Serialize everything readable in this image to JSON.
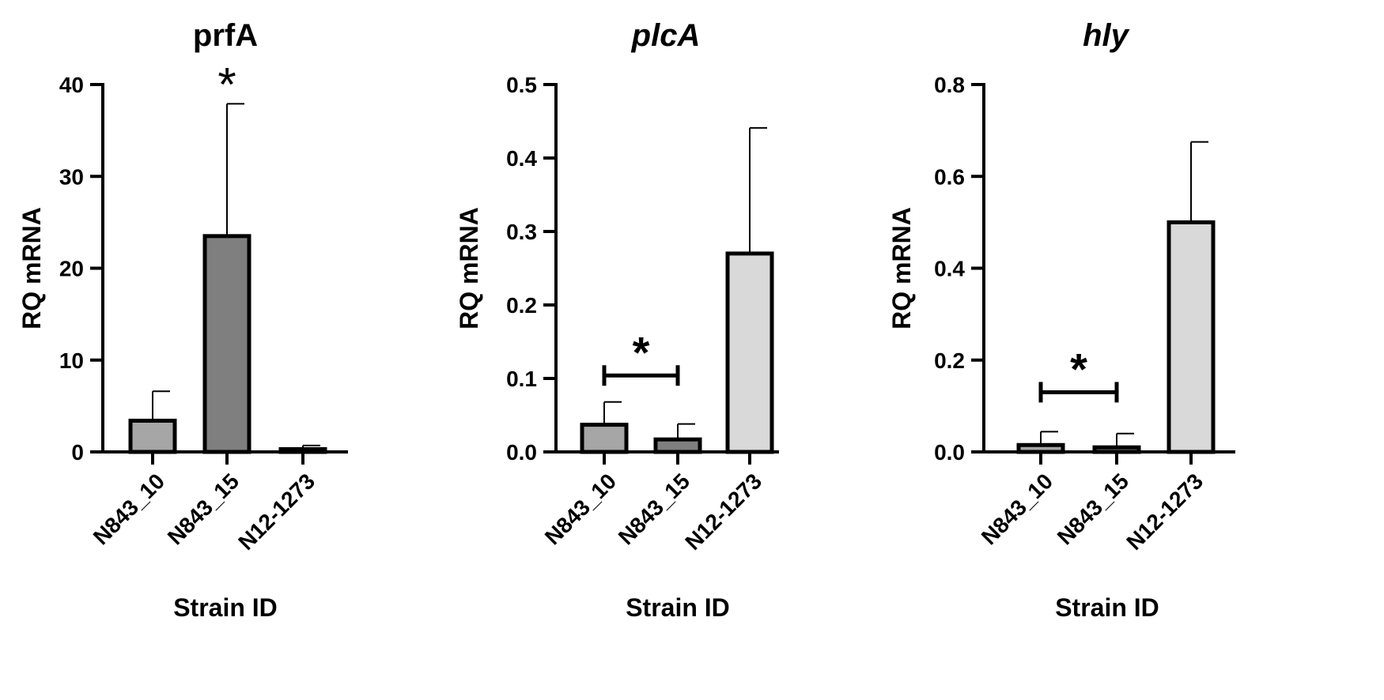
{
  "chart_data": [
    {
      "type": "bar",
      "title": "prfA",
      "title_italic": false,
      "xlabel": "Strain ID",
      "ylabel": "RQ mRNA",
      "ylim": [
        0,
        40
      ],
      "yticks": [
        0,
        10,
        20,
        30,
        40
      ],
      "ytick_labels": [
        "0",
        "10",
        "20",
        "30",
        "40"
      ],
      "categories": [
        "N843_10",
        "N843_15",
        "N12-1273"
      ],
      "values": [
        3.4,
        23.5,
        0.3
      ],
      "errors": [
        3.2,
        14.4,
        0.4
      ],
      "colors": [
        "#a6a6a6",
        "#7f7f7f",
        "#d9d9d9"
      ],
      "annotations": [
        {
          "text": "*",
          "over": [
            1
          ],
          "bracket": false
        }
      ]
    },
    {
      "type": "bar",
      "title": "plcA",
      "title_italic": true,
      "xlabel": "Strain ID",
      "ylabel": "RQ mRNA",
      "ylim": [
        0,
        0.5
      ],
      "yticks": [
        0,
        0.1,
        0.2,
        0.3,
        0.4,
        0.5
      ],
      "ytick_labels": [
        "0.0",
        "0.1",
        "0.2",
        "0.3",
        "0.4",
        "0.5"
      ],
      "categories": [
        "N843_10",
        "N843_15",
        "N12-1273"
      ],
      "values": [
        0.037,
        0.017,
        0.27
      ],
      "errors": [
        0.031,
        0.021,
        0.171
      ],
      "colors": [
        "#a6a6a6",
        "#7f7f7f",
        "#d9d9d9"
      ],
      "annotations": [
        {
          "text": "*",
          "over": [
            0,
            1
          ],
          "bracket": true,
          "y": 0.104
        }
      ]
    },
    {
      "type": "bar",
      "title": "hly",
      "title_italic": true,
      "xlabel": "Strain ID",
      "ylabel": "RQ mRNA",
      "ylim": [
        0,
        0.8
      ],
      "yticks": [
        0,
        0.2,
        0.4,
        0.6,
        0.8
      ],
      "ytick_labels": [
        "0.0",
        "0.2",
        "0.4",
        "0.6",
        "0.8"
      ],
      "categories": [
        "N843_10",
        "N843_15",
        "N12-1273"
      ],
      "values": [
        0.015,
        0.01,
        0.5
      ],
      "errors": [
        0.029,
        0.03,
        0.175
      ],
      "colors": [
        "#a6a6a6",
        "#7f7f7f",
        "#d9d9d9"
      ],
      "annotations": [
        {
          "text": "*",
          "over": [
            0,
            1
          ],
          "bracket": true,
          "y": 0.13
        }
      ]
    }
  ]
}
